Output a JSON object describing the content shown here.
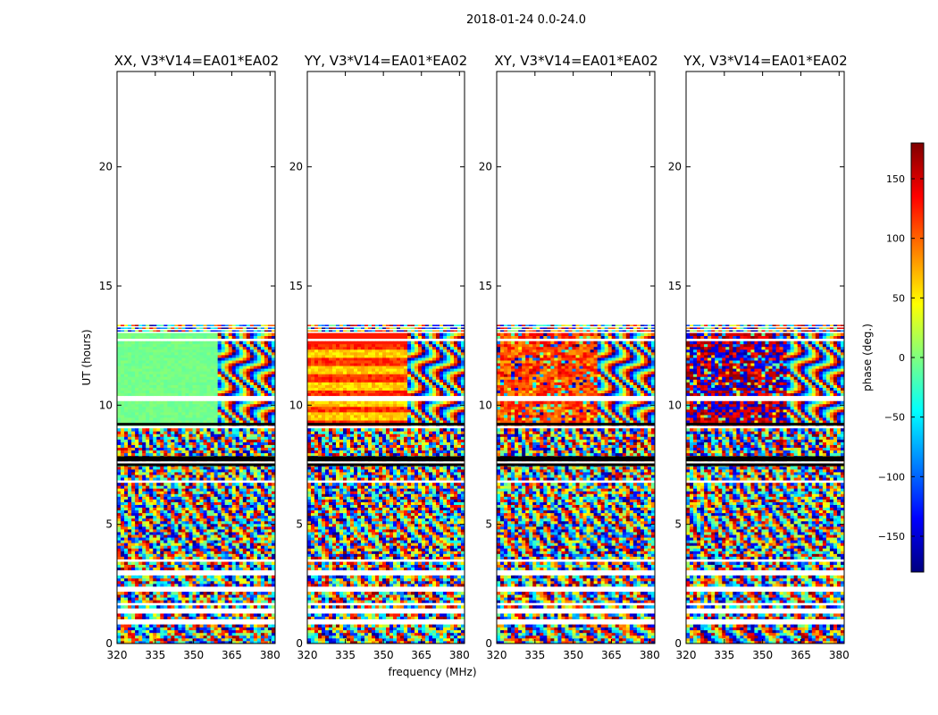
{
  "chart_data": {
    "type": "heatmap",
    "suptitle": "2018-01-24 0.0-24.0",
    "xlabel": "frequency (MHz)",
    "ylabel": "UT (hours)",
    "xlim": [
      320,
      382
    ],
    "ylim": [
      0,
      24
    ],
    "xticks": [
      320,
      335,
      350,
      365,
      380
    ],
    "yticks": [
      0,
      5,
      10,
      15,
      20
    ],
    "xtick_labels": [
      "320",
      "335",
      "350",
      "365",
      "380"
    ],
    "ytick_labels": [
      "0",
      "5",
      "10",
      "15",
      "20"
    ],
    "colorbar": {
      "label": "phase (deg.)",
      "range": [
        -180,
        180
      ],
      "ticks": [
        150,
        100,
        50,
        0,
        -50,
        -100,
        -150
      ],
      "tick_labels": [
        "150",
        "100",
        "50",
        "0",
        "−50",
        "−100",
        "−150"
      ],
      "colormap": "jet"
    },
    "data_extent_hours": [
      0,
      13.4
    ],
    "panels": [
      {
        "title": "XX, V3*V14=EA01*EA02",
        "pattern": "XX"
      },
      {
        "title": "YY, V3*V14=EA01*EA02",
        "pattern": "YY"
      },
      {
        "title": "XY, V3*V14=EA01*EA02",
        "pattern": "XY"
      },
      {
        "title": "YX, V3*V14=EA01*EA02",
        "pattern": "YX"
      }
    ]
  }
}
